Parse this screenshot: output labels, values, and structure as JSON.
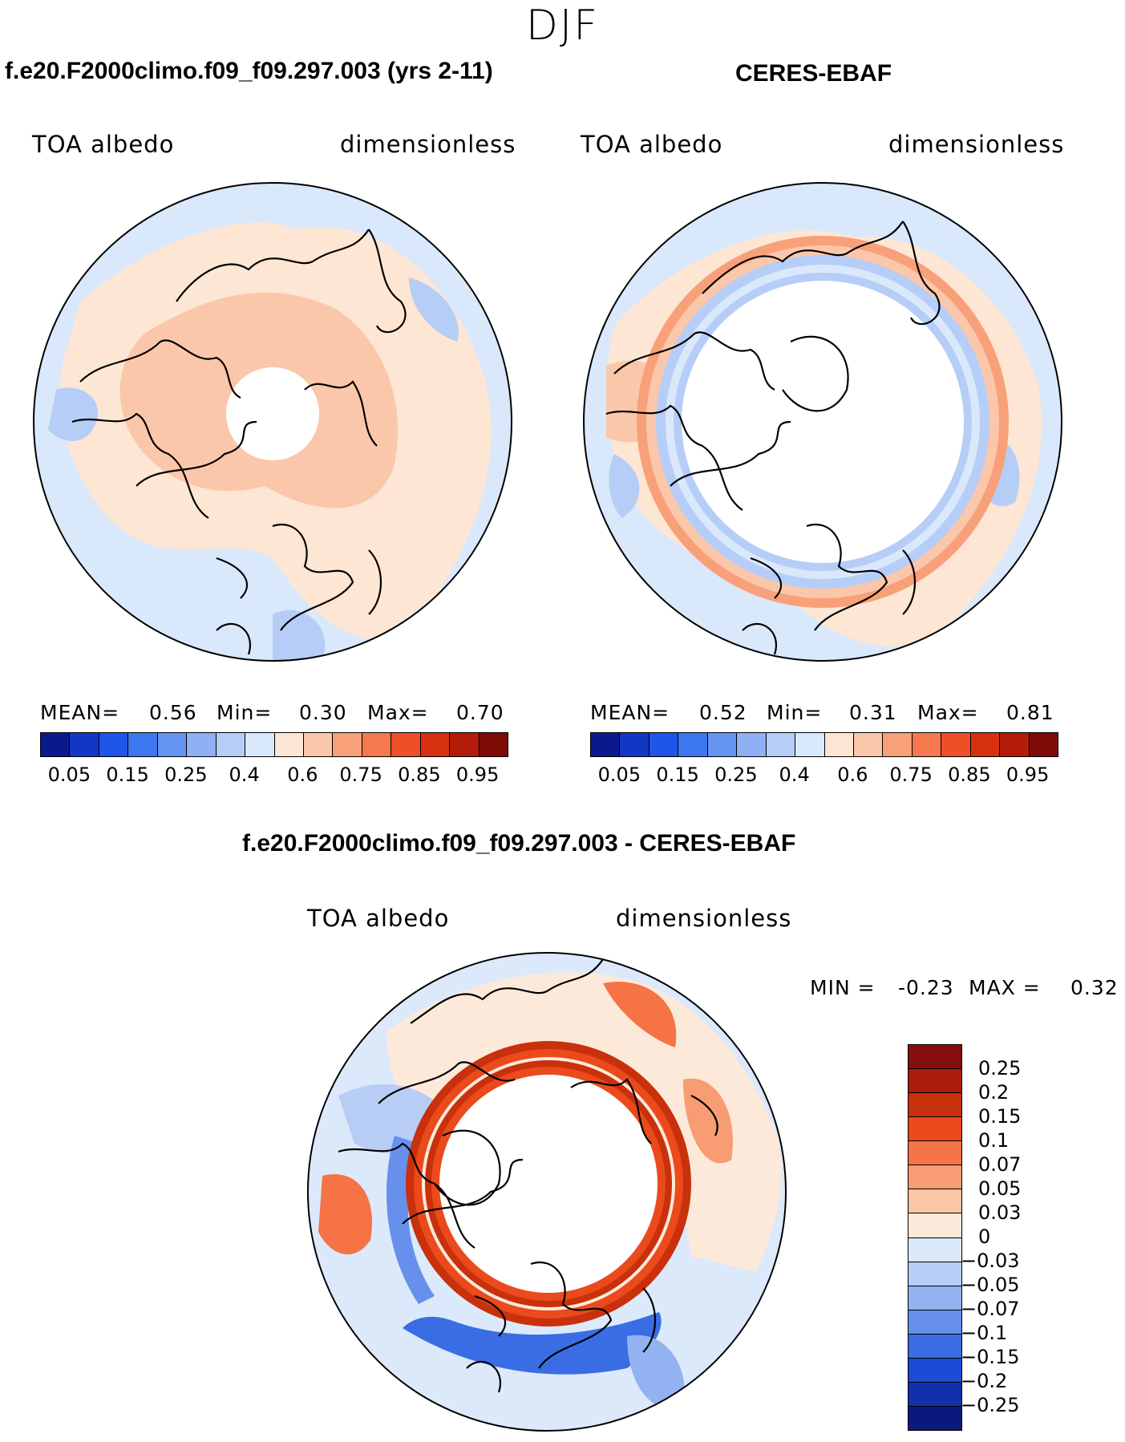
{
  "season": "DJF",
  "panels": [
    {
      "title": "f.e20.F2000climo.f09_f09.297.003 (yrs 2-11)",
      "variable": "TOA albedo",
      "units": "dimensionless",
      "mean_label": "MEAN=",
      "mean": "0.56",
      "min_label": "Min=",
      "min": "0.30",
      "max_label": "Max=",
      "max": "0.70"
    },
    {
      "title": "CERES-EBAF",
      "variable": "TOA albedo",
      "units": "dimensionless",
      "mean_label": "MEAN=",
      "mean": "0.52",
      "min_label": "Min=",
      "min": "0.31",
      "max_label": "Max=",
      "max": "0.81"
    }
  ],
  "colorbar_abs": {
    "colors": [
      "#0a1a8c",
      "#1237c4",
      "#1f56e8",
      "#3d77f0",
      "#6494f2",
      "#8fb0f4",
      "#b6cdf7",
      "#d9e8fb",
      "#fde6d4",
      "#fbc7aa",
      "#f8a07a",
      "#f5784f",
      "#ee4f26",
      "#d8310f",
      "#b21c08",
      "#7e0a05"
    ],
    "ticks": [
      "0.05",
      "0.15",
      "0.25",
      "0.4",
      "0.6",
      "0.75",
      "0.85",
      "0.95"
    ]
  },
  "diff_panel": {
    "title": "f.e20.F2000climo.f09_f09.297.003 - CERES-EBAF",
    "variable": "TOA albedo",
    "units": "dimensionless",
    "min_label": "MIN =",
    "min": "-0.23",
    "max_label": "MAX =",
    "max": "0.32"
  },
  "colorbar_diff": {
    "colors": [
      "#860d0d",
      "#a91d0a",
      "#c9300c",
      "#ea4a1c",
      "#f57345",
      "#f89c74",
      "#fbc6a5",
      "#fde9d9",
      "#dce9fb",
      "#b8cdf5",
      "#93b2f1",
      "#6690ec",
      "#3a6de4",
      "#1c4bd6",
      "#1030ac",
      "#0a1a7c"
    ],
    "ticks": [
      "0.25",
      "0.2",
      "0.15",
      "0.1",
      "0.07",
      "0.05",
      "0.03",
      "0",
      "−0.03",
      "−0.05",
      "−0.07",
      "−0.1",
      "−0.15",
      "−0.2",
      "−0.25"
    ]
  },
  "palette": {
    "land_outline": "#000000",
    "light_blue": "#d9e8fb",
    "pale_blue": "#b6cdf7",
    "peach": "#fde6d4",
    "salmon": "#fbc7aa",
    "dark_red": "#d8310f",
    "red_ring": "#e0451c"
  }
}
